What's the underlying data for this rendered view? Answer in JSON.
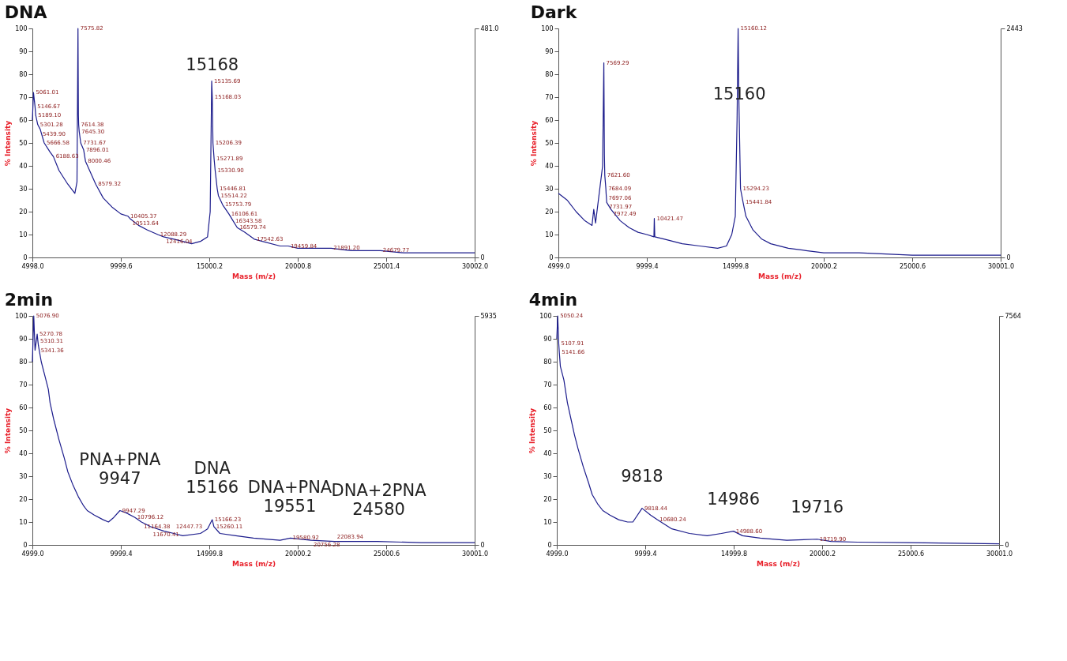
{
  "chart_data": [
    {
      "type": "line",
      "title": "DNA",
      "xlabel": "Mass (m/z)",
      "ylabel": "% Intensity",
      "xlim": [
        4998.0,
        30002.0
      ],
      "xticks": [
        {
          "value": 4998.0,
          "label": "4998.0"
        },
        {
          "value": 9999.6,
          "label": "9999.6"
        },
        {
          "value": 15000.2,
          "label": "15000.2"
        },
        {
          "value": 20000.8,
          "label": "20000.8"
        },
        {
          "value": 25001.4,
          "label": "25001.4"
        },
        {
          "value": 30002.0,
          "label": "30002.0"
        }
      ],
      "ylim": [
        0,
        100
      ],
      "yticks": [
        0,
        10,
        20,
        30,
        40,
        50,
        60,
        70,
        80,
        90,
        100
      ],
      "y2lim": [
        0,
        481
      ],
      "y2ticks": [
        0,
        {
          "value": 481,
          "label": "481.0"
        }
      ],
      "series": [
        {
          "type": "line",
          "color": "#1c1c8c",
          "x": [
            4998,
            5061.01,
            5146.67,
            5189.1,
            5301.28,
            5439.9,
            5666.58,
            6000,
            6188.63,
            6500,
            7000,
            7400,
            7520,
            7575.82,
            7600,
            7614.38,
            7645.3,
            7731.67,
            7896.01,
            8000.46,
            8579.32,
            9000,
            9500,
            10000,
            10405.37,
            10513.64,
            11000,
            11500,
            12088.29,
            12416.04,
            13000,
            13500,
            14000,
            14500,
            14900,
            15050,
            15135.69,
            15168.03,
            15206.39,
            15271.89,
            15330.9,
            15446.81,
            15514.22,
            15753.79,
            16106.61,
            16343.58,
            16579.74,
            17000,
            17542.63,
            18000,
            19000,
            19459.84,
            20000,
            21000,
            21891.2,
            23000,
            24679.77,
            26000,
            28000,
            30002
          ],
          "values": [
            60,
            72,
            66,
            62,
            58,
            56,
            50,
            46,
            44,
            38,
            32,
            28,
            33,
            100,
            62,
            58,
            55,
            50,
            47,
            42,
            32,
            26,
            22,
            19,
            18,
            17,
            14,
            12,
            10,
            9,
            8,
            7,
            6,
            7,
            9,
            20,
            77,
            70,
            50,
            43,
            38,
            30,
            27,
            23,
            19,
            16,
            13,
            11,
            8,
            7,
            5,
            5,
            4,
            4,
            4,
            3,
            3,
            2,
            2,
            2
          ]
        }
      ],
      "annotations": [
        {
          "text": "15168",
          "x": 15168,
          "y": 70
        },
        {
          "text": "5061.01",
          "x": 5061.01,
          "y": 72
        },
        {
          "text": "5146.67",
          "x": 5146.67,
          "y": 66
        },
        {
          "text": "5189.10",
          "x": 5189.1,
          "y": 62
        },
        {
          "text": "5301.28",
          "x": 5301.28,
          "y": 58
        },
        {
          "text": "5439.90",
          "x": 5439.9,
          "y": 56
        },
        {
          "text": "5666.58",
          "x": 5666.58,
          "y": 50
        },
        {
          "text": "6188.63",
          "x": 6188.63,
          "y": 44
        },
        {
          "text": "7575.82",
          "x": 7575.82,
          "y": 100
        },
        {
          "text": "7614.38",
          "x": 7614.38,
          "y": 58
        },
        {
          "text": "7645.30",
          "x": 7645.3,
          "y": 55
        },
        {
          "text": "7731.67",
          "x": 7731.67,
          "y": 50
        },
        {
          "text": "7896.01",
          "x": 7896.01,
          "y": 47
        },
        {
          "text": "8000.46",
          "x": 8000.46,
          "y": 42
        },
        {
          "text": "8579.32",
          "x": 8579.32,
          "y": 32
        },
        {
          "text": "10405.37",
          "x": 10405.37,
          "y": 18
        },
        {
          "text": "10513.64",
          "x": 10513.64,
          "y": 17
        },
        {
          "text": "12088.29",
          "x": 12088.29,
          "y": 10
        },
        {
          "text": "12416.04",
          "x": 12416.04,
          "y": 9
        },
        {
          "text": "15135.69",
          "x": 15135.69,
          "y": 77
        },
        {
          "text": "15168.03",
          "x": 15168.03,
          "y": 70
        },
        {
          "text": "15206.39",
          "x": 15206.39,
          "y": 50
        },
        {
          "text": "15271.89",
          "x": 15271.89,
          "y": 43
        },
        {
          "text": "15330.90",
          "x": 15330.9,
          "y": 38
        },
        {
          "text": "15446.81",
          "x": 15446.81,
          "y": 30
        },
        {
          "text": "15514.22",
          "x": 15514.22,
          "y": 27
        },
        {
          "text": "15753.79",
          "x": 15753.79,
          "y": 23
        },
        {
          "text": "16106.61",
          "x": 16106.61,
          "y": 19
        },
        {
          "text": "16343.58",
          "x": 16343.58,
          "y": 16
        },
        {
          "text": "16579.74",
          "x": 16579.74,
          "y": 13
        },
        {
          "text": "17542.63",
          "x": 17542.63,
          "y": 8
        },
        {
          "text": "19459.84",
          "x": 19459.84,
          "y": 5
        },
        {
          "text": "21891.20",
          "x": 21891.2,
          "y": 4
        },
        {
          "text": "24679.77",
          "x": 24679.77,
          "y": 3
        }
      ]
    },
    {
      "type": "line",
      "title": "Dark",
      "xlabel": "Mass (m/z)",
      "ylabel": "% Intensity",
      "xlim": [
        4999.0,
        30001.0
      ],
      "xticks": [
        {
          "value": 4999.0,
          "label": "4999.0"
        },
        {
          "value": 9999.4,
          "label": "9999.4"
        },
        {
          "value": 14999.8,
          "label": "14999.8"
        },
        {
          "value": 20000.2,
          "label": "20000.2"
        },
        {
          "value": 25000.6,
          "label": "25000.6"
        },
        {
          "value": 30001.0,
          "label": "30001.0"
        }
      ],
      "ylim": [
        0,
        100
      ],
      "yticks": [
        0,
        10,
        20,
        30,
        40,
        50,
        60,
        70,
        80,
        90,
        100
      ],
      "y2lim": [
        0,
        2443
      ],
      "y2ticks": [
        0,
        2443
      ],
      "series": [
        {
          "type": "line",
          "color": "#1c1c8c",
          "x": [
            4999,
            5500,
            6000,
            6500,
            6900,
            7000,
            7100,
            7500,
            7569.29,
            7600,
            7621.6,
            7684.09,
            7697.06,
            7731.97,
            7972.49,
            8500,
            9000,
            9500,
            10000,
            10400,
            10421.47,
            10450,
            11000,
            12000,
            13000,
            14000,
            14500,
            14800,
            15000,
            15100,
            15160.12,
            15200,
            15294.23,
            15441.84,
            15600,
            16000,
            16500,
            17000,
            18000,
            19000,
            20000,
            22000,
            25000,
            30001
          ],
          "values": [
            28,
            25,
            20,
            16,
            14,
            21,
            15,
            40,
            85,
            45,
            36,
            30,
            28,
            24,
            21,
            16,
            13,
            11,
            10,
            9,
            17,
            9,
            8,
            6,
            5,
            4,
            5,
            10,
            18,
            60,
            100,
            70,
            30,
            24,
            18,
            12,
            8,
            6,
            4,
            3,
            2,
            2,
            1,
            1
          ]
        }
      ],
      "annotations": [
        {
          "text": "15160",
          "x": 15230,
          "y": 57.3
        },
        {
          "text": "7569.29",
          "x": 7569.29,
          "y": 85
        },
        {
          "text": "7621.60",
          "x": 7621.6,
          "y": 36
        },
        {
          "text": "7684.09",
          "x": 7684.09,
          "y": 30
        },
        {
          "text": "7697.06",
          "x": 7697.06,
          "y": 28
        },
        {
          "text": "7731.97",
          "x": 7731.97,
          "y": 24
        },
        {
          "text": "7972.49",
          "x": 7972.49,
          "y": 21
        },
        {
          "text": "10421.47",
          "x": 10421.47,
          "y": 17
        },
        {
          "text": "15160.12",
          "x": 15160.12,
          "y": 100
        },
        {
          "text": "15294.23",
          "x": 15294.23,
          "y": 30
        },
        {
          "text": "15441.84",
          "x": 15441.84,
          "y": 24
        }
      ]
    },
    {
      "type": "line",
      "title": "2min",
      "xlabel": "Mass (m/z)",
      "ylabel": "% Intensity",
      "xlim": [
        4999.0,
        30001.0
      ],
      "xticks": [
        {
          "value": 4999.0,
          "label": "4999.0"
        },
        {
          "value": 9999.4,
          "label": "9999.4"
        },
        {
          "value": 14999.8,
          "label": "14999.8"
        },
        {
          "value": 20000.2,
          "label": "20000.2"
        },
        {
          "value": 25000.6,
          "label": "25000.6"
        },
        {
          "value": 30001.0,
          "label": "30001.0"
        }
      ],
      "ylim": [
        0,
        100
      ],
      "yticks": [
        0,
        10,
        20,
        30,
        40,
        50,
        60,
        70,
        80,
        90,
        100
      ],
      "y2lim": [
        0,
        5935
      ],
      "y2ticks": [
        0,
        5935
      ],
      "series": [
        {
          "type": "line",
          "color": "#1c1c8c",
          "x": [
            4999,
            5076.9,
            5150,
            5270.78,
            5310.31,
            5341.36,
            5500,
            5700,
            5900,
            6000,
            6200,
            6500,
            6800,
            7000,
            7300,
            7600,
            7900,
            8100,
            8500,
            9000,
            9300,
            9600,
            9947.29,
            10300,
            10796.12,
            11164.38,
            11670.41,
            12447.73,
            13000,
            13500,
            14500,
            14900,
            15166.23,
            15260.11,
            15600,
            16500,
            17500,
            19000,
            19580.92,
            20756.28,
            22083.94,
            24500,
            27000,
            30001
          ],
          "values": [
            80,
            100,
            85,
            92,
            89,
            87,
            80,
            74,
            68,
            62,
            55,
            46,
            38,
            32,
            26,
            21,
            17,
            15,
            13,
            11,
            10,
            12,
            15,
            14,
            12,
            10,
            8,
            6,
            5,
            4,
            5,
            7,
            11,
            8,
            5,
            4,
            3,
            2,
            3,
            2,
            1.5,
            1.5,
            1,
            1
          ]
        }
      ],
      "annotations": [
        {
          "text": "PNA+PNA",
          "x": 9947,
          "y": 15
        },
        {
          "text": "9947",
          "x": 9947,
          "y": 15
        },
        {
          "text": "DNA",
          "x": 15166,
          "y": 11
        },
        {
          "text": "15166",
          "x": 15166,
          "y": 11
        },
        {
          "text": "DNA+PNA",
          "x": 19551,
          "y": 2.9
        },
        {
          "text": "19551",
          "x": 19551,
          "y": 2.9
        },
        {
          "text": "DNA+2PNA",
          "x": 24580,
          "y": 1.5
        },
        {
          "text": "24580",
          "x": 24580,
          "y": 1.5
        },
        {
          "text": "5076.90",
          "x": 5076.9,
          "y": 100
        },
        {
          "text": "5270.78",
          "x": 5270.78,
          "y": 92
        },
        {
          "text": "5310.31",
          "x": 5310.31,
          "y": 89
        },
        {
          "text": "5341.36",
          "x": 5341.36,
          "y": 87
        },
        {
          "text": "9947.29",
          "x": 9947.29,
          "y": 15
        },
        {
          "text": "10796.12",
          "x": 10796.12,
          "y": 12
        },
        {
          "text": "11164.38",
          "x": 11164.38,
          "y": 10
        },
        {
          "text": "11670.41",
          "x": 11670.41,
          "y": 8
        },
        {
          "text": "12447.73",
          "x": 12447.73,
          "y": 6
        },
        {
          "text": "15166.23",
          "x": 15166.23,
          "y": 11
        },
        {
          "text": "15260.11",
          "x": 15260.11,
          "y": 8
        },
        {
          "text": "19580.92",
          "x": 19580.92,
          "y": 3
        },
        {
          "text": "20756.28",
          "x": 20756.28,
          "y": 2
        },
        {
          "text": "22083.94",
          "x": 22083.94,
          "y": 1.5
        }
      ]
    },
    {
      "type": "line",
      "title": "4min",
      "xlabel": "Mass (m/z)",
      "ylabel": "% Intensity",
      "xlim": [
        4999.0,
        30001.0
      ],
      "xticks": [
        {
          "value": 4999.0,
          "label": "4999.0"
        },
        {
          "value": 9999.4,
          "label": "9999.4"
        },
        {
          "value": 14999.8,
          "label": "14999.8"
        },
        {
          "value": 20000.2,
          "label": "20000.2"
        },
        {
          "value": 25000.6,
          "label": "25000.6"
        },
        {
          "value": 30001.0,
          "label": "30001.0"
        }
      ],
      "ylim": [
        0,
        100
      ],
      "yticks": [
        0,
        10,
        20,
        30,
        40,
        50,
        60,
        70,
        80,
        90,
        100
      ],
      "y2lim": [
        0,
        7564
      ],
      "y2ticks": [
        0,
        7564
      ],
      "series": [
        {
          "type": "line",
          "color": "#1c1c8c",
          "x": [
            4999,
            5050.24,
            5107.91,
            5141.66,
            5200,
            5400,
            5600,
            5800,
            6000,
            6200,
            6500,
            6800,
            7000,
            7300,
            7600,
            8000,
            8500,
            9000,
            9300,
            9818.44,
            10300,
            10680.24,
            11500,
            12500,
            13500,
            14300,
            14988.6,
            15500,
            16500,
            18000,
            19719.9,
            20500,
            22000,
            25000,
            30001
          ],
          "values": [
            90,
            100,
            88,
            84,
            78,
            72,
            62,
            55,
            48,
            42,
            34,
            27,
            22,
            18,
            15,
            13,
            11,
            10,
            10,
            16,
            13,
            11,
            7,
            5,
            4,
            5,
            6,
            4,
            3,
            2,
            2.5,
            1.5,
            1.2,
            1,
            0.5
          ]
        }
      ],
      "annotations": [
        {
          "text": "9818",
          "x": 9818,
          "y": 16
        },
        {
          "text": "14986",
          "x": 14986,
          "y": 6
        },
        {
          "text": "19716",
          "x": 19716,
          "y": 2.5
        },
        {
          "text": "5050.24",
          "x": 5050.24,
          "y": 100
        },
        {
          "text": "5107.91",
          "x": 5107.91,
          "y": 88
        },
        {
          "text": "5141.66",
          "x": 5141.66,
          "y": 84
        },
        {
          "text": "9818.44",
          "x": 9818.44,
          "y": 16
        },
        {
          "text": "10680.24",
          "x": 10680.24,
          "y": 11
        },
        {
          "text": "14988.60",
          "x": 14988.6,
          "y": 6
        },
        {
          "text": "19719.90",
          "x": 19719.9,
          "y": 2.5
        }
      ]
    }
  ]
}
